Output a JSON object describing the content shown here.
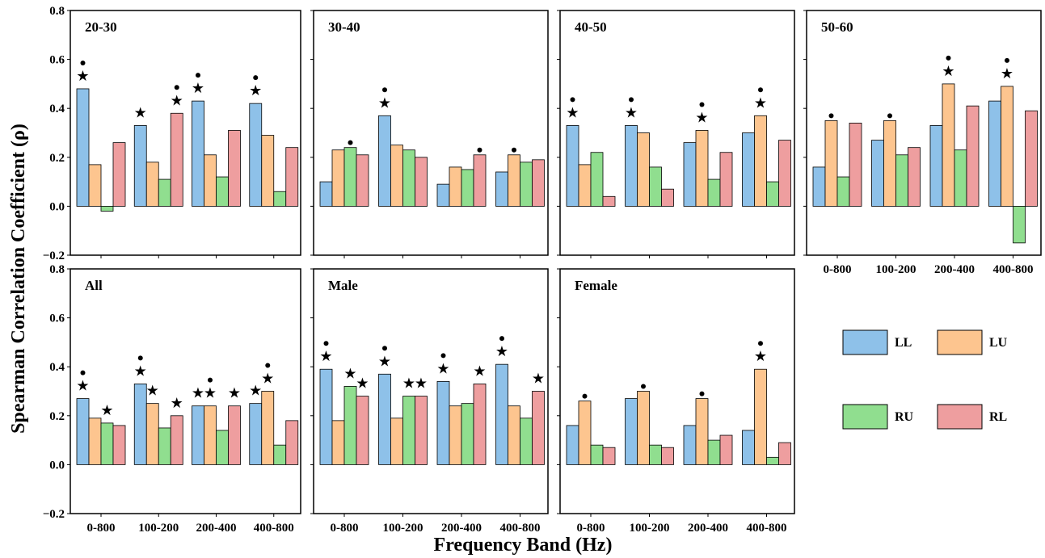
{
  "colors": {
    "LL": "#8ec1e9",
    "LU": "#fdc58f",
    "RU": "#90de8f",
    "RL": "#ee9e9f"
  },
  "figure": {
    "xlabel": "Frequency Band (Hz)",
    "ylabel": "Spearman Correlation Coefficient (ρ)",
    "yticks": [
      "0.8",
      "0.6",
      "0.4",
      "0.2",
      "0.0",
      "−0.2"
    ]
  },
  "legend": [
    {
      "key": "LL",
      "label": "LL"
    },
    {
      "key": "LU",
      "label": "LU"
    },
    {
      "key": "RU",
      "label": "RU"
    },
    {
      "key": "RL",
      "label": "RL"
    }
  ],
  "chart_data": [
    {
      "type": "bar",
      "title": "20-30",
      "categories": [
        "0-800",
        "100-200",
        "200-400",
        "400-800"
      ],
      "ylim": [
        -0.2,
        0.8
      ],
      "series": [
        {
          "name": "LL",
          "values": [
            0.48,
            0.33,
            0.43,
            0.42
          ]
        },
        {
          "name": "LU",
          "values": [
            0.17,
            0.18,
            0.21,
            0.29
          ]
        },
        {
          "name": "RU",
          "values": [
            -0.02,
            0.11,
            0.12,
            0.06
          ]
        },
        {
          "name": "RL",
          "values": [
            0.26,
            0.38,
            0.31,
            0.24
          ]
        }
      ],
      "markers": [
        {
          "cat": 0,
          "series": 0,
          "dot": true,
          "star": true
        },
        {
          "cat": 1,
          "series": 0,
          "dot": false,
          "star": true
        },
        {
          "cat": 1,
          "series": 3,
          "dot": true,
          "star": true
        },
        {
          "cat": 2,
          "series": 0,
          "dot": true,
          "star": true
        },
        {
          "cat": 3,
          "series": 0,
          "dot": true,
          "star": true
        }
      ]
    },
    {
      "type": "bar",
      "title": "30-40",
      "categories": [
        "0-800",
        "100-200",
        "200-400",
        "400-800"
      ],
      "ylim": [
        -0.2,
        0.8
      ],
      "series": [
        {
          "name": "LL",
          "values": [
            0.1,
            0.37,
            0.09,
            0.14
          ]
        },
        {
          "name": "LU",
          "values": [
            0.23,
            0.25,
            0.16,
            0.21
          ]
        },
        {
          "name": "RU",
          "values": [
            0.24,
            0.23,
            0.15,
            0.18
          ]
        },
        {
          "name": "RL",
          "values": [
            0.21,
            0.2,
            0.21,
            0.19
          ]
        }
      ],
      "markers": [
        {
          "cat": 0,
          "series": 2,
          "dot": true,
          "star": false
        },
        {
          "cat": 1,
          "series": 0,
          "dot": true,
          "star": true
        },
        {
          "cat": 2,
          "series": 3,
          "dot": true,
          "star": false
        },
        {
          "cat": 3,
          "series": 1,
          "dot": true,
          "star": false
        }
      ]
    },
    {
      "type": "bar",
      "title": "40-50",
      "categories": [
        "0-800",
        "100-200",
        "200-400",
        "400-800"
      ],
      "ylim": [
        -0.2,
        0.8
      ],
      "series": [
        {
          "name": "LL",
          "values": [
            0.33,
            0.33,
            0.26,
            0.3
          ]
        },
        {
          "name": "LU",
          "values": [
            0.17,
            0.3,
            0.31,
            0.37
          ]
        },
        {
          "name": "RU",
          "values": [
            0.22,
            0.16,
            0.11,
            0.1
          ]
        },
        {
          "name": "RL",
          "values": [
            0.04,
            0.07,
            0.22,
            0.27
          ]
        }
      ],
      "markers": [
        {
          "cat": 0,
          "series": 0,
          "dot": true,
          "star": true
        },
        {
          "cat": 1,
          "series": 0,
          "dot": true,
          "star": true
        },
        {
          "cat": 2,
          "series": 1,
          "dot": true,
          "star": true
        },
        {
          "cat": 3,
          "series": 1,
          "dot": true,
          "star": true
        }
      ]
    },
    {
      "type": "bar",
      "title": "50-60",
      "categories": [
        "0-800",
        "100-200",
        "200-400",
        "400-800"
      ],
      "ylim": [
        -0.2,
        0.8
      ],
      "series": [
        {
          "name": "LL",
          "values": [
            0.16,
            0.27,
            0.33,
            0.43
          ]
        },
        {
          "name": "LU",
          "values": [
            0.35,
            0.35,
            0.5,
            0.49
          ]
        },
        {
          "name": "RU",
          "values": [
            0.12,
            0.21,
            0.23,
            -0.15
          ]
        },
        {
          "name": "RL",
          "values": [
            0.34,
            0.24,
            0.41,
            0.39
          ]
        }
      ],
      "markers": [
        {
          "cat": 0,
          "series": 1,
          "dot": true,
          "star": false
        },
        {
          "cat": 1,
          "series": 1,
          "dot": true,
          "star": false
        },
        {
          "cat": 2,
          "series": 1,
          "dot": true,
          "star": true
        },
        {
          "cat": 3,
          "series": 1,
          "dot": true,
          "star": true
        }
      ]
    },
    {
      "type": "bar",
      "title": "All",
      "categories": [
        "0-800",
        "100-200",
        "200-400",
        "400-800"
      ],
      "ylim": [
        -0.2,
        0.8
      ],
      "series": [
        {
          "name": "LL",
          "values": [
            0.27,
            0.33,
            0.24,
            0.25
          ]
        },
        {
          "name": "LU",
          "values": [
            0.19,
            0.25,
            0.24,
            0.3
          ]
        },
        {
          "name": "RU",
          "values": [
            0.17,
            0.15,
            0.14,
            0.08
          ]
        },
        {
          "name": "RL",
          "values": [
            0.16,
            0.2,
            0.24,
            0.18
          ]
        }
      ],
      "markers": [
        {
          "cat": 0,
          "series": 0,
          "dot": true,
          "star": true
        },
        {
          "cat": 0,
          "series": 2,
          "dot": false,
          "star": true
        },
        {
          "cat": 1,
          "series": 0,
          "dot": true,
          "star": true
        },
        {
          "cat": 1,
          "series": 1,
          "dot": false,
          "star": true
        },
        {
          "cat": 1,
          "series": 3,
          "dot": false,
          "star": true
        },
        {
          "cat": 2,
          "series": 0,
          "dot": false,
          "star": true
        },
        {
          "cat": 2,
          "series": 1,
          "dot": true,
          "star": true
        },
        {
          "cat": 2,
          "series": 3,
          "dot": false,
          "star": true
        },
        {
          "cat": 3,
          "series": 0,
          "dot": false,
          "star": true
        },
        {
          "cat": 3,
          "series": 1,
          "dot": true,
          "star": true
        }
      ]
    },
    {
      "type": "bar",
      "title": "Male",
      "categories": [
        "0-800",
        "100-200",
        "200-400",
        "400-800"
      ],
      "ylim": [
        -0.2,
        0.8
      ],
      "series": [
        {
          "name": "LL",
          "values": [
            0.39,
            0.37,
            0.34,
            0.41
          ]
        },
        {
          "name": "LU",
          "values": [
            0.18,
            0.19,
            0.24,
            0.24
          ]
        },
        {
          "name": "RU",
          "values": [
            0.32,
            0.28,
            0.25,
            0.19
          ]
        },
        {
          "name": "RL",
          "values": [
            0.28,
            0.28,
            0.33,
            0.3
          ]
        }
      ],
      "markers": [
        {
          "cat": 0,
          "series": 0,
          "dot": true,
          "star": true
        },
        {
          "cat": 0,
          "series": 2,
          "dot": false,
          "star": true
        },
        {
          "cat": 0,
          "series": 3,
          "dot": false,
          "star": true
        },
        {
          "cat": 1,
          "series": 0,
          "dot": true,
          "star": true
        },
        {
          "cat": 1,
          "series": 2,
          "dot": false,
          "star": true
        },
        {
          "cat": 1,
          "series": 3,
          "dot": false,
          "star": true
        },
        {
          "cat": 2,
          "series": 0,
          "dot": true,
          "star": true
        },
        {
          "cat": 2,
          "series": 3,
          "dot": false,
          "star": true
        },
        {
          "cat": 3,
          "series": 0,
          "dot": true,
          "star": true
        },
        {
          "cat": 3,
          "series": 3,
          "dot": false,
          "star": true
        }
      ]
    },
    {
      "type": "bar",
      "title": "Female",
      "categories": [
        "0-800",
        "100-200",
        "200-400",
        "400-800"
      ],
      "ylim": [
        -0.2,
        0.8
      ],
      "series": [
        {
          "name": "LL",
          "values": [
            0.16,
            0.27,
            0.16,
            0.14
          ]
        },
        {
          "name": "LU",
          "values": [
            0.26,
            0.3,
            0.27,
            0.39
          ]
        },
        {
          "name": "RU",
          "values": [
            0.08,
            0.08,
            0.1,
            0.03
          ]
        },
        {
          "name": "RL",
          "values": [
            0.07,
            0.07,
            0.12,
            0.09
          ]
        }
      ],
      "markers": [
        {
          "cat": 0,
          "series": 1,
          "dot": true,
          "star": false
        },
        {
          "cat": 1,
          "series": 1,
          "dot": true,
          "star": false
        },
        {
          "cat": 2,
          "series": 1,
          "dot": true,
          "star": false
        },
        {
          "cat": 3,
          "series": 1,
          "dot": true,
          "star": true
        }
      ]
    }
  ]
}
